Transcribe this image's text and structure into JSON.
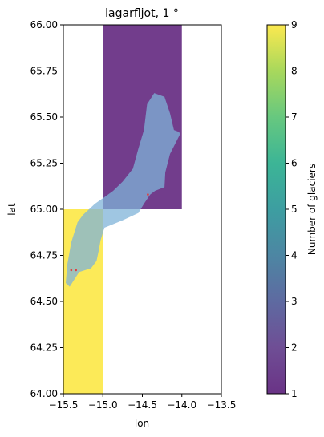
{
  "chart_data": {
    "type": "heatmap",
    "title": "lagarfljot, 1 °",
    "xlabel": "lon",
    "ylabel": "lat",
    "xlim": [
      -15.5,
      -13.5
    ],
    "ylim": [
      64.0,
      66.0
    ],
    "x_ticks": [
      "−15.5",
      "−15.0",
      "−14.5",
      "−14.0",
      "−13.5"
    ],
    "y_ticks": [
      "64.00",
      "64.25",
      "64.50",
      "64.75",
      "65.00",
      "65.25",
      "65.50",
      "65.75",
      "66.00"
    ],
    "cells": [
      {
        "lon_min": -15.5,
        "lon_max": -15.0,
        "lat_min": 64.0,
        "lat_max": 65.0,
        "value": 9
      },
      {
        "lon_min": -15.0,
        "lon_max": -14.0,
        "lat_min": 65.0,
        "lat_max": 66.0,
        "value": 1
      }
    ],
    "colorbar": {
      "label": "Number of glaciers",
      "min": 1,
      "max": 9,
      "ticks": [
        "1",
        "2",
        "3",
        "4",
        "5",
        "6",
        "7",
        "8",
        "9"
      ],
      "colormap": "viridis"
    },
    "basin": {
      "color": "#7fb3d8",
      "outline": [
        [
          -15.47,
          64.6
        ],
        [
          -15.45,
          64.7
        ],
        [
          -15.4,
          64.82
        ],
        [
          -15.32,
          64.93
        ],
        [
          -15.25,
          64.97
        ],
        [
          -15.1,
          65.03
        ],
        [
          -15.0,
          65.06
        ],
        [
          -14.87,
          65.1
        ],
        [
          -14.75,
          65.15
        ],
        [
          -14.62,
          65.22
        ],
        [
          -14.55,
          65.33
        ],
        [
          -14.48,
          65.43
        ],
        [
          -14.44,
          65.57
        ],
        [
          -14.35,
          65.63
        ],
        [
          -14.22,
          65.61
        ],
        [
          -14.15,
          65.52
        ],
        [
          -14.1,
          65.43
        ],
        [
          -14.04,
          65.42
        ],
        [
          -14.02,
          65.41
        ],
        [
          -14.15,
          65.3
        ],
        [
          -14.21,
          65.2
        ],
        [
          -14.22,
          65.12
        ],
        [
          -14.34,
          65.1
        ],
        [
          -14.4,
          65.08
        ],
        [
          -14.48,
          65.03
        ],
        [
          -14.55,
          64.98
        ],
        [
          -14.75,
          64.94
        ],
        [
          -14.98,
          64.9
        ],
        [
          -15.03,
          64.83
        ],
        [
          -15.05,
          64.78
        ],
        [
          -15.08,
          64.72
        ],
        [
          -15.15,
          64.68
        ],
        [
          -15.3,
          64.66
        ],
        [
          -15.42,
          64.58
        ]
      ]
    },
    "points": {
      "color": "#e04040",
      "coords": [
        [
          -15.4,
          64.67
        ],
        [
          -15.34,
          64.67
        ],
        [
          -14.43,
          65.08
        ]
      ]
    }
  }
}
